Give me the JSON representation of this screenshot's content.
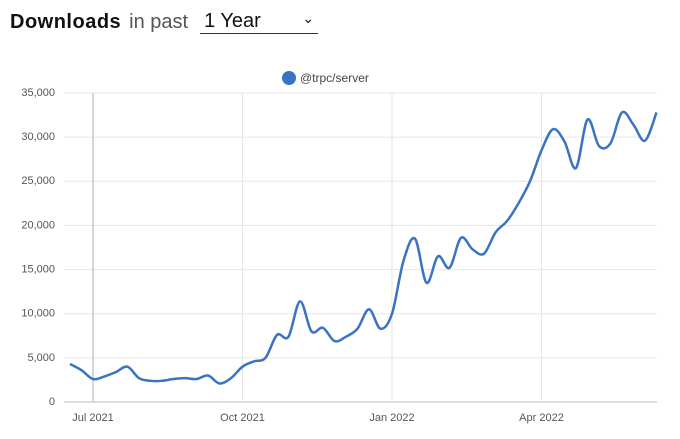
{
  "header": {
    "title": "Downloads",
    "period_prefix": "in past",
    "period": "1 Year"
  },
  "chart_data": {
    "type": "line",
    "categories": [
      null,
      null,
      "Jul 2021",
      null,
      null,
      null,
      null,
      null,
      null,
      null,
      null,
      null,
      null,
      null,
      null,
      "Oct 2021",
      null,
      null,
      null,
      null,
      null,
      null,
      null,
      null,
      null,
      null,
      null,
      null,
      "Jan 2022",
      null,
      null,
      null,
      null,
      null,
      null,
      null,
      null,
      null,
      null,
      null,
      null,
      "Apr 2022",
      null,
      null,
      null,
      null,
      null,
      null,
      null,
      null,
      null,
      null
    ],
    "series": [
      {
        "name": "@trpc/server",
        "color": "#3a72c4",
        "values": [
          4300,
          3600,
          2600,
          2900,
          3400,
          4000,
          2700,
          2400,
          2400,
          2600,
          2700,
          2600,
          3000,
          2100,
          2700,
          4000,
          4600,
          5000,
          7600,
          7400,
          11400,
          8000,
          8400,
          6900,
          7400,
          8300,
          10500,
          8300,
          10000,
          16000,
          18500,
          13500,
          16500,
          15200,
          18600,
          17300,
          16800,
          19200,
          20500,
          22500,
          25000,
          28500,
          30900,
          29500,
          26500,
          32000,
          29000,
          29300,
          32800,
          31400,
          29600,
          32800
        ]
      }
    ],
    "ylim": [
      0,
      35000
    ],
    "yticks": [
      0,
      {
        "value": 5000,
        "label": "5,000"
      },
      {
        "value": 10000,
        "label": "10,000"
      },
      {
        "value": 15000,
        "label": "15,000"
      },
      {
        "value": 20000,
        "label": "20,000"
      },
      {
        "value": 25000,
        "label": "25,000"
      },
      {
        "value": 30000,
        "label": "30,000"
      },
      {
        "value": 35000,
        "label": "35,000"
      }
    ],
    "grid": true
  }
}
